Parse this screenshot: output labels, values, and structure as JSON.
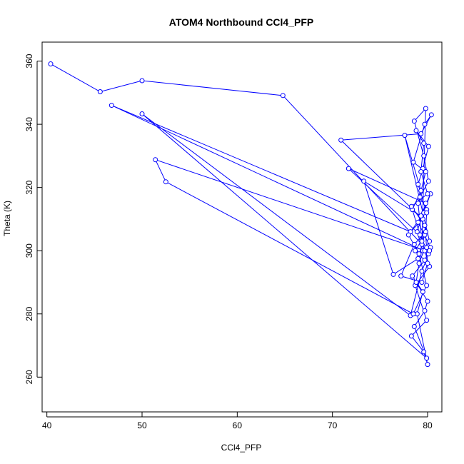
{
  "chart_data": {
    "type": "line",
    "title": "ATOM4 Northbound CCl4_PFP",
    "xlabel": "CCl4_PFP",
    "ylabel": "Theta (K)",
    "xlim": [
      39.5,
      81.5
    ],
    "ylim": [
      249,
      366
    ],
    "xticks": [
      "40",
      "50",
      "60",
      "70",
      "80"
    ],
    "yticks": [
      "260",
      "280",
      "300",
      "320",
      "340",
      "360"
    ],
    "marker": "open-circle",
    "color": "#0000ff",
    "series": [
      {
        "x": [
          40.4,
          45.6,
          50.0,
          64.8,
          79.4,
          79.8,
          78.6,
          79.6,
          80.1,
          79.2,
          79.9,
          79.0,
          80.3,
          79.7,
          78.4,
          79.5,
          78.9,
          80.0,
          79.6,
          78.3,
          79.9,
          78.7,
          80.2,
          79.4,
          79.0,
          79.8,
          78.5,
          79.7,
          80.4,
          79.3,
          70.9,
          79.5,
          78.2,
          46.8,
          79.6,
          79.1,
          78.8,
          80.0,
          79.7,
          78.6,
          79.9,
          50.0,
          78.2,
          79.4,
          80.1,
          79.2,
          71.7,
          79.8,
          78.9,
          79.5,
          80.2,
          77.6,
          79.3,
          78.4,
          79.7,
          51.4,
          52.5,
          78.5,
          79.9,
          79.1,
          78.0,
          79.6,
          80.3,
          79.3,
          73.3,
          76.4,
          79.0,
          79.7,
          78.7,
          80.0,
          79.4,
          77.2,
          78.6,
          79.8,
          79.9,
          79.0,
          79.5,
          80.1,
          78.8,
          79.6,
          79.3,
          80.0,
          78.3,
          79.7,
          79.9,
          80.2
        ],
        "y": [
          359.1,
          350.3,
          353.8,
          349.1,
          302.0,
          345.0,
          341.0,
          330.0,
          322.0,
          317.0,
          313.0,
          309.0,
          301.0,
          297.0,
          292.0,
          287.0,
          280.0,
          264.0,
          268.0,
          273.0,
          278.0,
          289.0,
          295.0,
          303.0,
          315.0,
          325.0,
          328.0,
          340.0,
          343.0,
          337.0,
          335.0,
          310.0,
          306.0,
          346.0,
          300.0,
          296.0,
          290.0,
          284.0,
          281.0,
          276.0,
          266.0,
          343.3,
          279.5,
          293.5,
          299.0,
          305.0,
          326.0,
          315.0,
          306.0,
          300.0,
          303.0,
          336.5,
          319.0,
          313.0,
          300.0,
          328.8,
          321.8,
          280.0,
          289.0,
          299.0,
          305.0,
          312.0,
          318.0,
          311.0,
          322.0,
          292.5,
          297.5,
          305.0,
          300.0,
          296.0,
          290.0,
          292.0,
          302.0,
          306.0,
          312.0,
          321.0,
          326.0,
          333.0,
          338.0,
          334.0,
          325.0,
          318.0,
          314.0,
          308.0,
          301.0,
          300.0
        ]
      }
    ]
  }
}
